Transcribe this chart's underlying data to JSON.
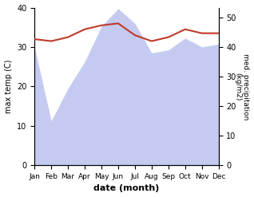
{
  "months": [
    "Jan",
    "Feb",
    "Mar",
    "Apr",
    "May",
    "Jun",
    "Jul",
    "Aug",
    "Sep",
    "Oct",
    "Nov",
    "Dec"
  ],
  "temp": [
    32.0,
    31.5,
    32.5,
    34.5,
    35.5,
    36.0,
    33.0,
    31.5,
    32.5,
    34.5,
    33.5,
    33.5
  ],
  "precip": [
    40,
    15,
    26,
    35,
    47,
    53,
    48,
    38,
    39,
    43,
    40,
    41
  ],
  "temp_color": "#c0392b",
  "precip_fill_color": "#c5cbf0",
  "left_ylabel": "max temp (C)",
  "right_ylabel": "med. precipitation\n(kg/m2)",
  "xlabel": "date (month)",
  "ylim_left": [
    0,
    40
  ],
  "ylim_right": [
    0,
    53.33
  ],
  "bg_color": "#ffffff"
}
